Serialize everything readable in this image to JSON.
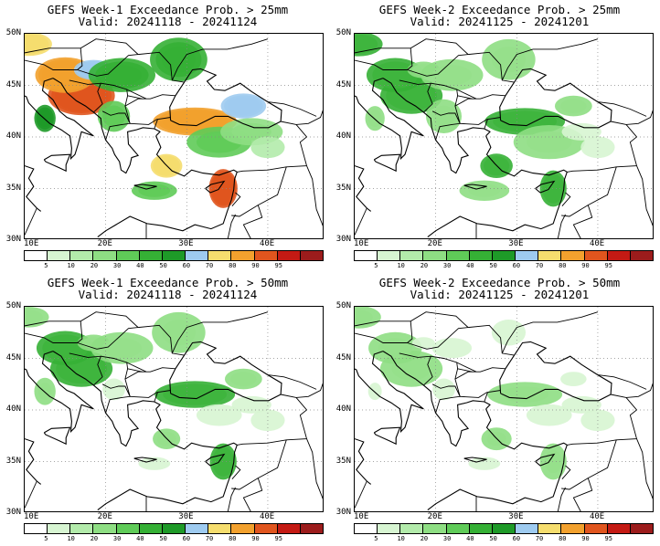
{
  "panels": [
    {
      "title_line1": "GEFS Week-1 Exceedance Prob. > 25mm",
      "title_line2": "Valid: 20241118 - 20241124",
      "intensity": 1.0
    },
    {
      "title_line1": "GEFS Week-2 Exceedance Prob. > 25mm",
      "title_line2": "Valid: 20241125 - 20241201",
      "intensity": 0.45
    },
    {
      "title_line1": "GEFS Week-1 Exceedance Prob. > 50mm",
      "title_line2": "Valid: 20241118 - 20241124",
      "intensity": 0.55
    },
    {
      "title_line1": "GEFS Week-2 Exceedance Prob. > 50mm",
      "title_line2": "Valid: 20241125 - 20241201",
      "intensity": 0.2
    }
  ],
  "lat_labels": [
    "50N",
    "45N",
    "40N",
    "35N",
    "30N"
  ],
  "lon_labels": [
    "10E",
    "20E",
    "30E",
    "40E"
  ],
  "colorbar": {
    "labels": [
      "5",
      "10",
      "20",
      "30",
      "40",
      "50",
      "60",
      "70",
      "80",
      "90",
      "95"
    ],
    "colors": [
      "#ffffff",
      "#d7f5d2",
      "#b3ebab",
      "#8ede83",
      "#5fcb58",
      "#35b035",
      "#1e9a28",
      "#9ecbf0",
      "#f5dd6e",
      "#f2a12e",
      "#e0551e",
      "#c41a14",
      "#9c1c1c"
    ]
  }
}
